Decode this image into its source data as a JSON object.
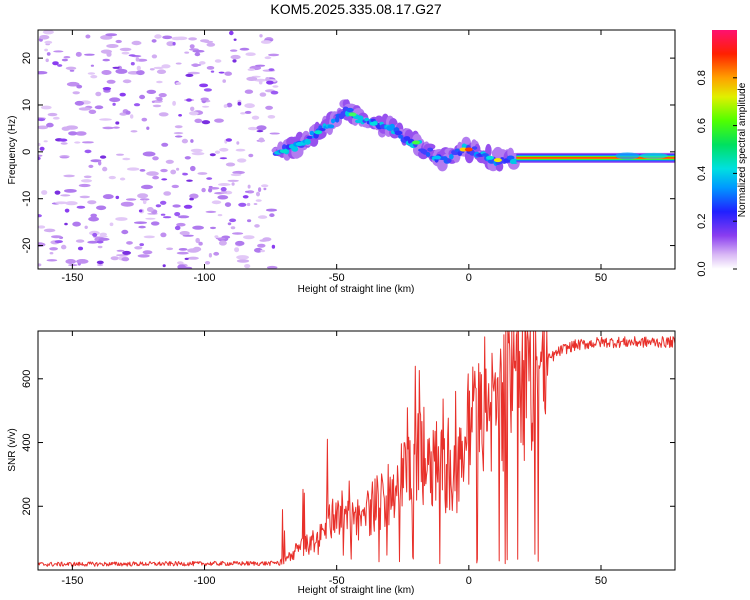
{
  "title": "KOM5.2025.335.08.17.G27",
  "chart_data": [
    {
      "type": "heatmap",
      "name": "spectrogram",
      "xlabel": "Height of straight line (km)",
      "ylabel": "Frequency (Hz)",
      "xlim": [
        -163,
        78
      ],
      "ylim": [
        -25,
        26
      ],
      "xticks": [
        -150,
        -100,
        -50,
        0,
        50
      ],
      "yticks": [
        -20,
        -10,
        0,
        10,
        20
      ],
      "noise_region": [
        -163,
        -73
      ],
      "signal_track": [
        {
          "x": -73,
          "y": -0.5
        },
        {
          "x": -66,
          "y": 1
        },
        {
          "x": -60,
          "y": 3
        },
        {
          "x": -55,
          "y": 5
        },
        {
          "x": -50,
          "y": 7
        },
        {
          "x": -47,
          "y": 9
        },
        {
          "x": -44,
          "y": 8
        },
        {
          "x": -40,
          "y": 6.5
        },
        {
          "x": -36,
          "y": 6
        },
        {
          "x": -30,
          "y": 5
        },
        {
          "x": -25,
          "y": 3
        },
        {
          "x": -20,
          "y": 2
        },
        {
          "x": -15,
          "y": 0
        },
        {
          "x": -10,
          "y": -2
        },
        {
          "x": -6,
          "y": -1
        },
        {
          "x": -3,
          "y": 0.5
        },
        {
          "x": 0,
          "y": 0.5
        },
        {
          "x": 5,
          "y": -0.5
        },
        {
          "x": 10,
          "y": -1.8
        },
        {
          "x": 18,
          "y": -1.5
        },
        {
          "x": 78,
          "y": -1.2
        }
      ],
      "steady_carrier": {
        "x_start": 18,
        "x_end": 78,
        "frequency": -1.3
      }
    },
    {
      "type": "line",
      "name": "snr",
      "xlabel": "Height of straight line (km)",
      "ylabel": "SNR (v/v)",
      "xlim": [
        -163,
        78
      ],
      "ylim": [
        0,
        750
      ],
      "xticks": [
        -150,
        -100,
        -50,
        0,
        50
      ],
      "yticks": [
        200,
        400,
        600
      ],
      "color": "#e8302a",
      "envelope": [
        {
          "x": -163,
          "y": 15
        },
        {
          "x": -75,
          "y": 18
        },
        {
          "x": -70,
          "y": 25
        },
        {
          "x": -65,
          "y": 60
        },
        {
          "x": -60,
          "y": 80
        },
        {
          "x": -55,
          "y": 110
        },
        {
          "x": -50,
          "y": 180
        },
        {
          "x": -45,
          "y": 140
        },
        {
          "x": -40,
          "y": 160
        },
        {
          "x": -35,
          "y": 200
        },
        {
          "x": -30,
          "y": 230
        },
        {
          "x": -25,
          "y": 280
        },
        {
          "x": -20,
          "y": 330
        },
        {
          "x": -15,
          "y": 350
        },
        {
          "x": -10,
          "y": 300
        },
        {
          "x": -5,
          "y": 270
        },
        {
          "x": 0,
          "y": 430
        },
        {
          "x": 5,
          "y": 460
        },
        {
          "x": 10,
          "y": 480
        },
        {
          "x": 15,
          "y": 540
        },
        {
          "x": 20,
          "y": 560
        },
        {
          "x": 25,
          "y": 620
        },
        {
          "x": 30,
          "y": 660
        },
        {
          "x": 35,
          "y": 690
        },
        {
          "x": 40,
          "y": 705
        },
        {
          "x": 50,
          "y": 715
        },
        {
          "x": 60,
          "y": 715
        },
        {
          "x": 78,
          "y": 715
        }
      ]
    },
    {
      "type": "colorbar",
      "name": "colorbar",
      "label": "Normalized spectral amplitude",
      "range": [
        0,
        1
      ],
      "ticks": [
        "0.0",
        "0.2",
        "0.4",
        "0.6",
        "0.8"
      ]
    }
  ]
}
